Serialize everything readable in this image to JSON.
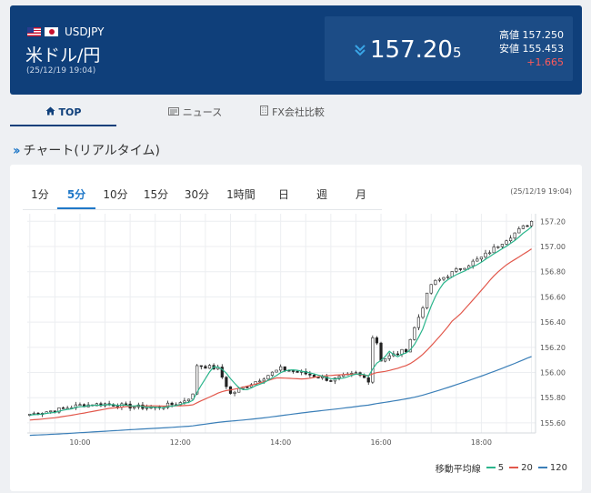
{
  "header": {
    "pair_code": "USDJPY",
    "pair_name": "米ドル/円",
    "timestamp": "(25/12/19 19:04)",
    "price_main": "157.20",
    "price_small": "5",
    "high_label": "高値",
    "high_value": "157.250",
    "low_label": "安値",
    "low_value": "155.453",
    "change": "+1.665",
    "direction": "down",
    "colors": {
      "bg": "#0f3f7a",
      "change": "#ff5a5a",
      "arrow": "#3aa5e6"
    }
  },
  "tabs": [
    {
      "label": "TOP",
      "icon": "home-icon",
      "active": true
    },
    {
      "label": "ニュース",
      "icon": "newspaper-icon",
      "active": false
    },
    {
      "label": "FX会社比較",
      "icon": "building-icon",
      "active": false
    }
  ],
  "section_title": "チャート(リアルタイム)",
  "chart_panel": {
    "ranges": [
      "1分",
      "5分",
      "10分",
      "15分",
      "30分",
      "1時間",
      "日",
      "週",
      "月"
    ],
    "active_range": "5分",
    "timestamp": "(25/12/19 19:04)",
    "legend": {
      "title": "移動平均線",
      "items": [
        {
          "label": "5",
          "color": "#2bb58c"
        },
        {
          "label": "20",
          "color": "#e2584c"
        },
        {
          "label": "120",
          "color": "#3b7fb8"
        }
      ]
    }
  },
  "chart_data": {
    "type": "candlestick",
    "x_ticks": [
      "10:00",
      "12:00",
      "14:00",
      "16:00",
      "18:00"
    ],
    "y_ticks": [
      "155.60",
      "155.80",
      "156.00",
      "156.20",
      "156.40",
      "156.60",
      "156.80",
      "157.00",
      "157.20"
    ],
    "ylim": [
      155.52,
      157.26
    ],
    "grid": true,
    "close_anchors": [
      [
        9.0,
        155.67
      ],
      [
        9.5,
        155.7
      ],
      [
        10.0,
        155.74
      ],
      [
        10.5,
        155.75
      ],
      [
        11.0,
        155.73
      ],
      [
        11.5,
        155.72
      ],
      [
        12.0,
        155.76
      ],
      [
        12.25,
        155.82
      ],
      [
        12.33,
        156.06
      ],
      [
        12.75,
        156.03
      ],
      [
        13.0,
        155.83
      ],
      [
        13.5,
        155.93
      ],
      [
        14.0,
        156.03
      ],
      [
        14.5,
        155.99
      ],
      [
        15.0,
        155.94
      ],
      [
        15.5,
        155.99
      ],
      [
        15.75,
        155.94
      ],
      [
        15.85,
        156.35
      ],
      [
        16.0,
        156.1
      ],
      [
        16.5,
        156.18
      ],
      [
        17.0,
        156.7
      ],
      [
        17.5,
        156.81
      ],
      [
        18.0,
        156.91
      ],
      [
        18.5,
        157.06
      ],
      [
        19.0,
        157.2
      ]
    ],
    "series": [
      {
        "name": "5",
        "color": "#2bb58c"
      },
      {
        "name": "20",
        "color": "#e2584c"
      },
      {
        "name": "120",
        "color": "#3b7fb8"
      }
    ]
  }
}
